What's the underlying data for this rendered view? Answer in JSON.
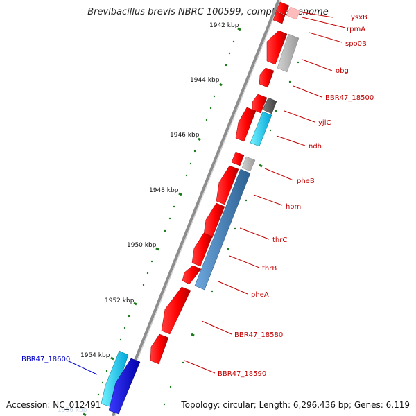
{
  "title": "Brevibacillus brevis NBRC 100599, complete genome",
  "accession_text": "Accession: NC_012491",
  "summary_text": "Topology: circular; Length: 6,296,436 bp; Genes: 6,119",
  "colors": {
    "backbone": "#8c8c8c",
    "forward_gene": "#ff1a1a",
    "reverse_gene": "#ff1a1a",
    "grey_gene": "#b4b4b4",
    "dark_grey_gene": "#5f5f5f",
    "cyan_gene": "#27e6ff",
    "blue_gene": "#1818ff",
    "steel_gene": "#3f86c4",
    "red_label": "#c00000",
    "blue_label": "#0000cc",
    "tick": "#1b7a1b",
    "tick_label": "#111111"
  },
  "kbp_ticks": [
    "1942 kbp",
    "1944 kbp",
    "1946 kbp",
    "1948 kbp",
    "1950 kbp",
    "1952 kbp",
    "1954 kbp",
    "1956 kbp"
  ],
  "gene_labels": [
    {
      "text": "ysxB",
      "color": "red"
    },
    {
      "text": "rpmA",
      "color": "red"
    },
    {
      "text": "spo0B",
      "color": "red"
    },
    {
      "text": "obg",
      "color": "red"
    },
    {
      "text": "BBR47_18500",
      "color": "red"
    },
    {
      "text": "yjlC",
      "color": "red"
    },
    {
      "text": "ndh",
      "color": "red"
    },
    {
      "text": "pheB",
      "color": "red"
    },
    {
      "text": "hom",
      "color": "red"
    },
    {
      "text": "thrC",
      "color": "red"
    },
    {
      "text": "thrB",
      "color": "red"
    },
    {
      "text": "pheA",
      "color": "red"
    },
    {
      "text": "BBR47_18580",
      "color": "red"
    },
    {
      "text": "BBR47_18590",
      "color": "red"
    },
    {
      "text": "BBR47_18600",
      "color": "blue"
    }
  ]
}
